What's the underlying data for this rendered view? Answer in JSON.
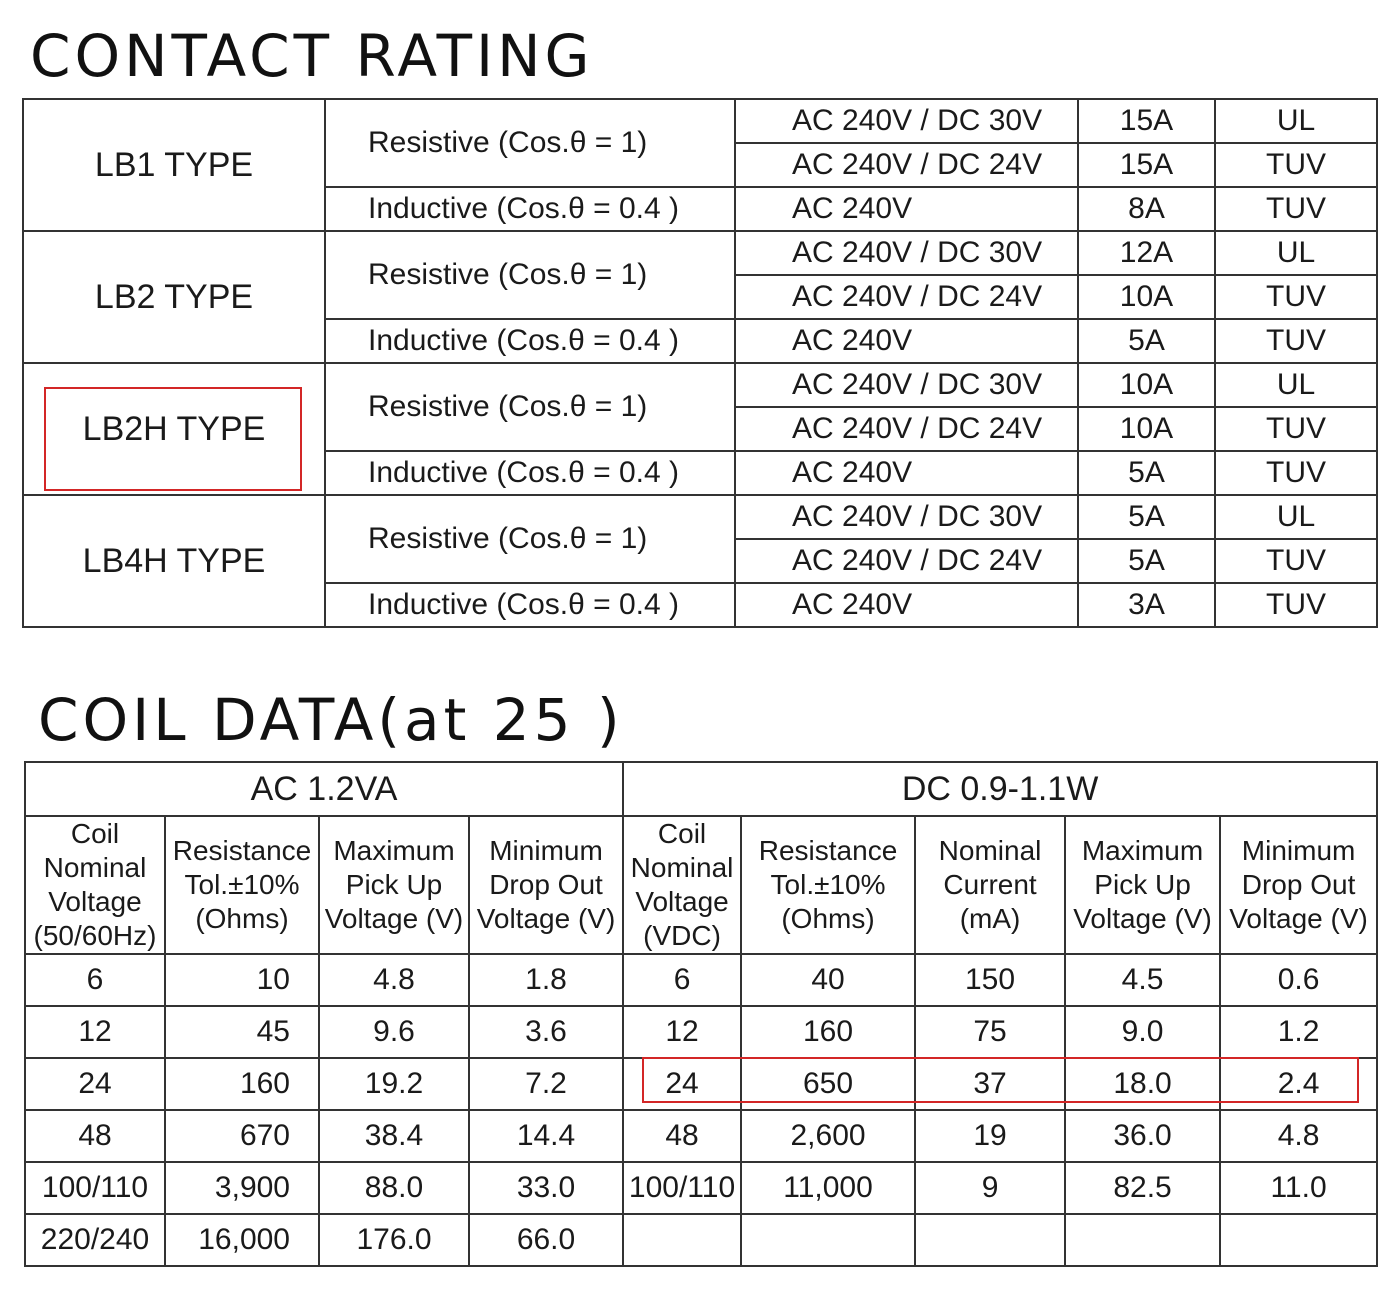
{
  "contact_rating": {
    "title": "CONTACT RATING",
    "groups": [
      {
        "type": "LB1 TYPE",
        "resistive": "Resistive (Cos.θ = 1)",
        "inductive": "Inductive (Cos.θ = 0.4 )",
        "rows": [
          {
            "voltage": "AC 240V / DC 30V",
            "current": "15A",
            "standard": "UL"
          },
          {
            "voltage": "AC 240V / DC 24V",
            "current": "15A",
            "standard": "TUV"
          },
          {
            "voltage": "AC 240V",
            "current": "8A",
            "standard": "TUV"
          }
        ]
      },
      {
        "type": "LB2 TYPE",
        "resistive": "Resistive (Cos.θ = 1)",
        "inductive": "Inductive (Cos.θ = 0.4 )",
        "rows": [
          {
            "voltage": "AC 240V / DC 30V",
            "current": "12A",
            "standard": "UL"
          },
          {
            "voltage": "AC 240V / DC 24V",
            "current": "10A",
            "standard": "TUV"
          },
          {
            "voltage": "AC 240V",
            "current": "5A",
            "standard": "TUV"
          }
        ]
      },
      {
        "type": "LB2H TYPE",
        "resistive": "Resistive (Cos.θ = 1)",
        "inductive": "Inductive (Cos.θ = 0.4 )",
        "rows": [
          {
            "voltage": "AC 240V / DC 30V",
            "current": "10A",
            "standard": "UL"
          },
          {
            "voltage": "AC 240V / DC 24V",
            "current": "10A",
            "standard": "TUV"
          },
          {
            "voltage": "AC 240V",
            "current": "5A",
            "standard": "TUV"
          }
        ]
      },
      {
        "type": "LB4H TYPE",
        "resistive": "Resistive (Cos.θ = 1)",
        "inductive": "Inductive (Cos.θ = 0.4 )",
        "rows": [
          {
            "voltage": "AC 240V / DC 30V",
            "current": "5A",
            "standard": "UL"
          },
          {
            "voltage": "AC 240V / DC 24V",
            "current": "5A",
            "standard": "TUV"
          },
          {
            "voltage": "AC 240V",
            "current": "3A",
            "standard": "TUV"
          }
        ]
      }
    ]
  },
  "coil_data": {
    "title": "COIL DATA(at 25 )",
    "ac_header": "AC  1.2VA",
    "dc_header": "DC  0.9-1.1W",
    "ac_columns": [
      "Coil Nominal Voltage (50/60Hz)",
      "Resistance Tol.±10% (Ohms)",
      "Maximum Pick Up Voltage (V)",
      "Minimum Drop Out Voltage (V)"
    ],
    "dc_columns": [
      "Coil Nominal Voltage (VDC)",
      "Resistance Tol.±10% (Ohms)",
      "Nominal Current (mA)",
      "Maximum Pick Up Voltage (V)",
      "Minimum Drop Out Voltage (V)"
    ],
    "ac_rows": [
      [
        "6",
        "10",
        "4.8",
        "1.8"
      ],
      [
        "12",
        "45",
        "9.6",
        "3.6"
      ],
      [
        "24",
        "160",
        "19.2",
        "7.2"
      ],
      [
        "48",
        "670",
        "38.4",
        "14.4"
      ],
      [
        "100/110",
        "3,900",
        "88.0",
        "33.0"
      ],
      [
        "220/240",
        "16,000",
        "176.0",
        "66.0"
      ]
    ],
    "dc_rows": [
      [
        "6",
        "40",
        "150",
        "4.5",
        "0.6"
      ],
      [
        "12",
        "160",
        "75",
        "9.0",
        "1.2"
      ],
      [
        "24",
        "650",
        "37",
        "18.0",
        "2.4"
      ],
      [
        "48",
        "2,600",
        "19",
        "36.0",
        "4.8"
      ],
      [
        "100/110",
        "11,000",
        "9",
        "82.5",
        "11.0"
      ],
      [
        "",
        "",
        "",
        "",
        ""
      ]
    ]
  },
  "highlight_color": "#d32626"
}
